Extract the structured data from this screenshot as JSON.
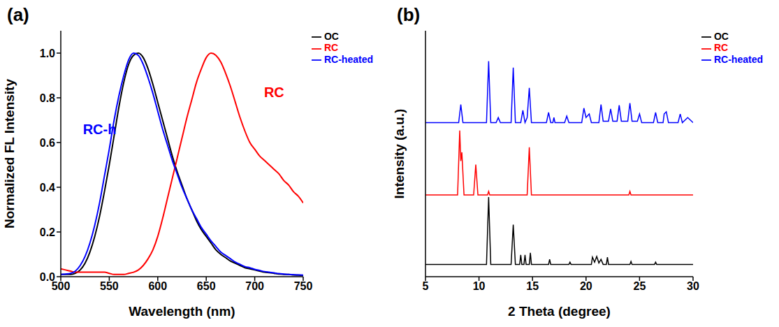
{
  "chart_data": [
    {
      "type": "line",
      "panel_label": "(a)",
      "x_label": "Wavelength (nm)",
      "y_label": "Normalized FL Intensity",
      "x": [
        500,
        505,
        510,
        515,
        520,
        525,
        530,
        535,
        540,
        545,
        550,
        555,
        560,
        565,
        570,
        575,
        580,
        585,
        590,
        595,
        600,
        605,
        610,
        615,
        620,
        625,
        630,
        635,
        640,
        645,
        650,
        655,
        660,
        665,
        670,
        675,
        680,
        685,
        690,
        695,
        700,
        705,
        710,
        715,
        720,
        725,
        730,
        735,
        740,
        745,
        750
      ],
      "series": [
        {
          "name": "OC",
          "color": "#000000",
          "values": [
            0.01,
            0.01,
            0.01,
            0.015,
            0.03,
            0.06,
            0.11,
            0.18,
            0.27,
            0.38,
            0.5,
            0.63,
            0.76,
            0.87,
            0.95,
            0.99,
            1.0,
            0.98,
            0.93,
            0.86,
            0.78,
            0.7,
            0.62,
            0.54,
            0.47,
            0.41,
            0.35,
            0.3,
            0.25,
            0.21,
            0.18,
            0.15,
            0.12,
            0.1,
            0.085,
            0.07,
            0.06,
            0.05,
            0.04,
            0.035,
            0.03,
            0.025,
            0.02,
            0.018,
            0.015,
            0.012,
            0.01,
            0.01,
            0.008,
            0.007,
            0.006
          ]
        },
        {
          "name": "RC",
          "color": "#ff0000",
          "values": [
            0.035,
            0.03,
            0.025,
            0.02,
            0.02,
            0.02,
            0.02,
            0.02,
            0.02,
            0.02,
            0.015,
            0.01,
            0.01,
            0.01,
            0.015,
            0.02,
            0.03,
            0.05,
            0.08,
            0.12,
            0.18,
            0.26,
            0.35,
            0.44,
            0.53,
            0.62,
            0.71,
            0.79,
            0.87,
            0.93,
            0.98,
            1.0,
            0.99,
            0.96,
            0.91,
            0.85,
            0.78,
            0.71,
            0.65,
            0.6,
            0.57,
            0.54,
            0.52,
            0.5,
            0.48,
            0.46,
            0.43,
            0.41,
            0.38,
            0.36,
            0.33
          ]
        },
        {
          "name": "RC-heated",
          "color": "#0000ff",
          "values": [
            0.01,
            0.012,
            0.015,
            0.025,
            0.05,
            0.09,
            0.15,
            0.23,
            0.33,
            0.45,
            0.57,
            0.7,
            0.81,
            0.9,
            0.97,
            1.0,
            0.99,
            0.95,
            0.89,
            0.82,
            0.74,
            0.66,
            0.59,
            0.52,
            0.46,
            0.4,
            0.35,
            0.3,
            0.26,
            0.22,
            0.19,
            0.16,
            0.135,
            0.11,
            0.095,
            0.08,
            0.065,
            0.055,
            0.045,
            0.04,
            0.033,
            0.028,
            0.023,
            0.02,
            0.017,
            0.014,
            0.012,
            0.01,
            0.009,
            0.008,
            0.007
          ]
        }
      ],
      "xlim": [
        500,
        750
      ],
      "xticks": [
        500,
        550,
        600,
        650,
        700,
        750
      ],
      "ylim": [
        0,
        1.1
      ],
      "yticks": [
        {
          "value": 0,
          "label": "0.0"
        },
        0.2,
        0.4,
        0.6,
        0.8,
        {
          "value": 1,
          "label": "1.0"
        }
      ],
      "legend": "right",
      "annotations": [
        {
          "text": "RC-h",
          "color": "#0000ff"
        },
        {
          "text": "RC",
          "color": "#ff0000"
        }
      ]
    },
    {
      "type": "line",
      "panel_label": "(b)",
      "x_label": "2 Theta (degree)",
      "y_label": "Intensity (a.u.)",
      "series": [
        {
          "name": "OC",
          "color": "#000000",
          "x": [
            5,
            10.7,
            10.9,
            11.1,
            13.0,
            13.2,
            13.4,
            13.8,
            13.9,
            14.0,
            14.2,
            14.3,
            14.4,
            14.7,
            14.8,
            14.9,
            16.5,
            16.6,
            16.7,
            18.4,
            18.5,
            18.6,
            20.5,
            20.6,
            20.8,
            21.0,
            21.2,
            21.4,
            21.6,
            21.9,
            22.0,
            22.1,
            24.1,
            24.2,
            24.3,
            26.4,
            26.5,
            26.6,
            30
          ],
          "values": [
            0.17,
            0.17,
            1.1,
            0.17,
            0.17,
            0.72,
            0.17,
            0.17,
            0.3,
            0.17,
            0.17,
            0.3,
            0.17,
            0.17,
            0.33,
            0.17,
            0.17,
            0.24,
            0.17,
            0.17,
            0.2,
            0.17,
            0.17,
            0.27,
            0.2,
            0.28,
            0.19,
            0.24,
            0.17,
            0.17,
            0.27,
            0.17,
            0.17,
            0.21,
            0.17,
            0.17,
            0.2,
            0.17,
            0.17
          ]
        },
        {
          "name": "RC",
          "color": "#ff0000",
          "x": [
            5,
            8.0,
            8.2,
            8.3,
            8.4,
            8.6,
            9.5,
            9.7,
            9.9,
            10.8,
            10.9,
            11.0,
            14.5,
            14.7,
            14.9,
            24.0,
            24.1,
            24.2,
            30
          ],
          "values": [
            1.13,
            1.13,
            2.02,
            1.6,
            1.72,
            1.13,
            1.13,
            1.55,
            1.13,
            1.13,
            1.18,
            1.13,
            1.13,
            1.79,
            1.13,
            1.13,
            1.18,
            1.13,
            1.13
          ]
        },
        {
          "name": "RC-heated",
          "color": "#0000ff",
          "x": [
            5,
            8.1,
            8.3,
            8.5,
            10.7,
            10.9,
            11.1,
            11.6,
            11.8,
            12.0,
            13.0,
            13.2,
            13.4,
            13.9,
            14.1,
            14.3,
            14.5,
            14.7,
            14.9,
            16.3,
            16.5,
            16.7,
            16.9,
            17.0,
            17.1,
            18.0,
            18.2,
            18.4,
            19.6,
            19.8,
            20.0,
            20.3,
            20.5,
            21.2,
            21.4,
            21.6,
            22.1,
            22.3,
            22.5,
            22.9,
            23.1,
            23.3,
            23.9,
            24.1,
            24.3,
            24.8,
            25.0,
            25.2,
            26.3,
            26.5,
            26.7,
            27.2,
            27.3,
            27.5,
            27.7,
            28.6,
            28.8,
            29.0,
            29.5,
            30
          ],
          "values": [
            2.13,
            2.13,
            2.38,
            2.13,
            2.13,
            2.98,
            2.13,
            2.13,
            2.2,
            2.13,
            2.13,
            2.89,
            2.13,
            2.13,
            2.3,
            2.13,
            2.2,
            2.61,
            2.13,
            2.13,
            2.27,
            2.13,
            2.13,
            2.2,
            2.13,
            2.13,
            2.22,
            2.13,
            2.13,
            2.33,
            2.2,
            2.25,
            2.13,
            2.13,
            2.38,
            2.15,
            2.15,
            2.32,
            2.15,
            2.15,
            2.37,
            2.15,
            2.15,
            2.4,
            2.15,
            2.15,
            2.25,
            2.13,
            2.13,
            2.27,
            2.13,
            2.13,
            2.25,
            2.28,
            2.13,
            2.13,
            2.25,
            2.13,
            2.2,
            2.13
          ]
        }
      ],
      "xlim": [
        5,
        30
      ],
      "xticks": [
        5,
        10,
        15,
        20,
        25,
        30
      ],
      "ylim": [
        0,
        3.4
      ],
      "tick_labels": "x",
      "legend": "right"
    }
  ]
}
